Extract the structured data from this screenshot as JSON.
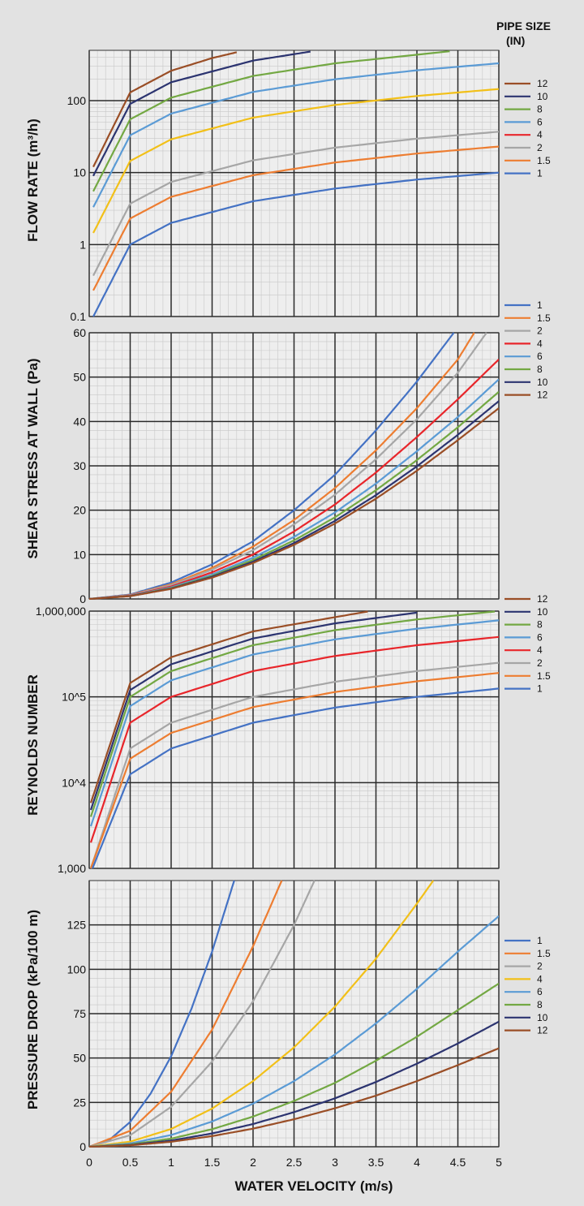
{
  "figure_title": [
    "PIPE SIZE",
    "(IN)"
  ],
  "x_axis": {
    "label": "WATER VELOCITY (m/s)",
    "ticks": [
      "0",
      "0.5",
      "1",
      "1.5",
      "2",
      "2.5",
      "3",
      "3.5",
      "4",
      "4.5",
      "5"
    ],
    "range": [
      0,
      5
    ]
  },
  "colors": {
    "12": "#9a4e26",
    "10": "#2c3470",
    "8": "#73a843",
    "6": "#5b9bd5",
    "4": "#e8262b",
    "2": "#a6a6a6",
    "1.5": "#ed7d31",
    "1": "#4472c4",
    "4y": "#f2c018"
  },
  "chart_data": [
    {
      "type": "line",
      "id": "flow",
      "ylabel": "FLOW RATE (m³/h)",
      "yscale": "log",
      "ylim": [
        0.1,
        500
      ],
      "yticks": [
        {
          "v": 0.1,
          "label": "0.1"
        },
        {
          "v": 1,
          "label": "1"
        },
        {
          "v": 10,
          "label": "10"
        },
        {
          "v": 100,
          "label": "100"
        }
      ],
      "legend_order": [
        "12",
        "10",
        "8",
        "6",
        "4",
        "2",
        "1.5",
        "1"
      ],
      "legend_placement": "top-right",
      "legend_colors": {
        "4": "#e8262b"
      },
      "series": [
        {
          "name": "12",
          "color": "#9a4e26",
          "x": [
            0.05,
            0.5,
            1,
            1.5,
            1.8
          ],
          "y": [
            12,
            130,
            260,
            390,
            470
          ]
        },
        {
          "name": "10",
          "color": "#2c3470",
          "x": [
            0.05,
            0.5,
            1,
            2,
            2.7
          ],
          "y": [
            9,
            90,
            180,
            360,
            480
          ]
        },
        {
          "name": "8",
          "color": "#73a843",
          "x": [
            0.05,
            0.5,
            1,
            2,
            3,
            4.4
          ],
          "y": [
            5.5,
            55,
            110,
            220,
            330,
            485
          ]
        },
        {
          "name": "6",
          "color": "#5b9bd5",
          "x": [
            0.05,
            0.5,
            1,
            2,
            3,
            4,
            5
          ],
          "y": [
            3.3,
            33,
            66,
            132,
            198,
            264,
            330
          ]
        },
        {
          "name": "4",
          "color": "#f2c018",
          "x": [
            0.05,
            0.5,
            1,
            2,
            3,
            4,
            5
          ],
          "y": [
            1.45,
            14.5,
            29,
            58,
            87,
            116,
            145
          ]
        },
        {
          "name": "2",
          "color": "#a6a6a6",
          "x": [
            0.05,
            0.5,
            1,
            2,
            3,
            4,
            5
          ],
          "y": [
            0.37,
            3.7,
            7.4,
            14.8,
            22.2,
            29.6,
            37
          ]
        },
        {
          "name": "1.5",
          "color": "#ed7d31",
          "x": [
            0.05,
            0.5,
            1,
            2,
            3,
            4,
            5
          ],
          "y": [
            0.23,
            2.3,
            4.6,
            9.2,
            13.8,
            18.4,
            23
          ]
        },
        {
          "name": "1",
          "color": "#4472c4",
          "x": [
            0.05,
            0.5,
            1,
            2,
            3,
            4,
            5
          ],
          "y": [
            0.1,
            1.0,
            2.0,
            4.0,
            6.0,
            8.0,
            10
          ]
        }
      ]
    },
    {
      "type": "line",
      "id": "shear",
      "ylabel": "SHEAR STRESS AT WALL (Pa)",
      "yscale": "linear",
      "ylim": [
        0,
        60
      ],
      "yticks": [
        {
          "v": 0,
          "label": "0"
        },
        {
          "v": 10,
          "label": "10"
        },
        {
          "v": 20,
          "label": "20"
        },
        {
          "v": 30,
          "label": "30"
        },
        {
          "v": 40,
          "label": "40"
        },
        {
          "v": 50,
          "label": "50"
        },
        {
          "v": 60,
          "label": "60"
        }
      ],
      "legend_order": [
        "1",
        "1.5",
        "2",
        "4",
        "6",
        "8",
        "10",
        "12"
      ],
      "legend_placement": "right",
      "series": [
        {
          "name": "1",
          "color": "#4472c4",
          "x": [
            0,
            0.5,
            1,
            1.5,
            2,
            2.5,
            3,
            3.5,
            4,
            4.45
          ],
          "y": [
            0,
            1,
            3.7,
            7.8,
            13,
            20,
            28,
            38,
            49,
            60
          ]
        },
        {
          "name": "1.5",
          "color": "#ed7d31",
          "x": [
            0,
            0.5,
            1,
            1.5,
            2,
            2.5,
            3,
            3.5,
            4,
            4.5,
            4.7
          ],
          "y": [
            0,
            0.9,
            3.3,
            7,
            11.8,
            17.8,
            25,
            33.5,
            43,
            54,
            60
          ]
        },
        {
          "name": "2",
          "color": "#a6a6a6",
          "x": [
            0,
            0.5,
            1,
            1.5,
            2,
            2.5,
            3,
            3.5,
            4,
            4.5,
            4.85
          ],
          "y": [
            0,
            0.85,
            3.1,
            6.6,
            11,
            16.8,
            23.5,
            31.5,
            40.5,
            51,
            60
          ]
        },
        {
          "name": "4",
          "color": "#e8262b",
          "x": [
            0,
            0.5,
            1,
            1.5,
            2,
            2.5,
            3,
            3.5,
            4,
            4.5,
            5
          ],
          "y": [
            0,
            0.78,
            2.8,
            6,
            10,
            15.2,
            21.3,
            28.5,
            36.5,
            45,
            54
          ]
        },
        {
          "name": "6",
          "color": "#5b9bd5",
          "x": [
            0,
            0.5,
            1,
            1.5,
            2,
            2.5,
            3,
            3.5,
            4,
            4.5,
            5
          ],
          "y": [
            0,
            0.72,
            2.6,
            5.5,
            9.3,
            14,
            19.5,
            26,
            33.3,
            41,
            49.5
          ]
        },
        {
          "name": "8",
          "color": "#73a843",
          "x": [
            0,
            0.5,
            1,
            1.5,
            2,
            2.5,
            3,
            3.5,
            4,
            4.5,
            5
          ],
          "y": [
            0,
            0.68,
            2.45,
            5.2,
            8.8,
            13.2,
            18.4,
            24.5,
            31.3,
            38.7,
            46.7
          ]
        },
        {
          "name": "10",
          "color": "#2c3470",
          "x": [
            0,
            0.5,
            1,
            1.5,
            2,
            2.5,
            3,
            3.5,
            4,
            4.5,
            5
          ],
          "y": [
            0,
            0.65,
            2.35,
            5,
            8.4,
            12.6,
            17.6,
            23.4,
            29.9,
            37,
            44.6
          ]
        },
        {
          "name": "12",
          "color": "#9a4e26",
          "x": [
            0,
            0.5,
            1,
            1.5,
            2,
            2.5,
            3,
            3.5,
            4,
            4.5,
            5
          ],
          "y": [
            0,
            0.63,
            2.27,
            4.8,
            8.1,
            12.2,
            17,
            22.6,
            28.9,
            35.8,
            43
          ]
        }
      ]
    },
    {
      "type": "line",
      "id": "reynolds",
      "ylabel": "REYNOLDS NUMBER",
      "yscale": "log",
      "ylim": [
        1000,
        1000000
      ],
      "yticks": [
        {
          "v": 1000,
          "label": "1,000"
        },
        {
          "v": 10000,
          "label": "10^4"
        },
        {
          "v": 100000,
          "label": "10^5"
        },
        {
          "v": 1000000,
          "label": "1,000,000"
        }
      ],
      "legend_order": [
        "12",
        "10",
        "8",
        "6",
        "4",
        "2",
        "1.5",
        "1"
      ],
      "legend_placement": "right",
      "series": [
        {
          "name": "12",
          "color": "#9a4e26",
          "x": [
            0.02,
            0.5,
            1,
            2,
            3.4
          ],
          "y": [
            5800,
            145000,
            290000,
            580000,
            990000
          ]
        },
        {
          "name": "10",
          "color": "#2c3470",
          "x": [
            0.02,
            0.5,
            1,
            2,
            3,
            4
          ],
          "y": [
            4800,
            120000,
            240000,
            480000,
            720000,
            960000
          ]
        },
        {
          "name": "8",
          "color": "#73a843",
          "x": [
            0.02,
            0.5,
            1,
            2,
            3,
            4,
            4.95
          ],
          "y": [
            4000,
            100000,
            200000,
            400000,
            600000,
            800000,
            990000
          ]
        },
        {
          "name": "6",
          "color": "#5b9bd5",
          "x": [
            0.02,
            0.5,
            1,
            2,
            3,
            4,
            5
          ],
          "y": [
            3100,
            78000,
            156000,
            312000,
            468000,
            624000,
            780000
          ]
        },
        {
          "name": "4",
          "color": "#e8262b",
          "x": [
            0.02,
            0.5,
            1,
            2,
            3,
            4,
            5
          ],
          "y": [
            2000,
            50000,
            100000,
            200000,
            300000,
            400000,
            500000
          ]
        },
        {
          "name": "2",
          "color": "#a6a6a6",
          "x": [
            0.02,
            0.5,
            1,
            2,
            3,
            4,
            5
          ],
          "y": [
            1000,
            25000,
            50000,
            100000,
            150000,
            200000,
            250000
          ]
        },
        {
          "name": "1.5",
          "color": "#ed7d31",
          "x": [
            0.02,
            0.5,
            1,
            2,
            3,
            4,
            5
          ],
          "y": [
            1000,
            19000,
            38000,
            76000,
            114000,
            152000,
            190000
          ]
        },
        {
          "name": "1",
          "color": "#4472c4",
          "x": [
            0.04,
            0.5,
            1,
            2,
            3,
            4,
            5
          ],
          "y": [
            1000,
            12500,
            25000,
            50000,
            75000,
            100000,
            125000
          ]
        }
      ]
    },
    {
      "type": "line",
      "id": "pressure",
      "ylabel": "PRESSURE DROP (kPa/100 m)",
      "yscale": "linear",
      "ylim": [
        0,
        150
      ],
      "yticks": [
        {
          "v": 0,
          "label": "0"
        },
        {
          "v": 25,
          "label": "25"
        },
        {
          "v": 50,
          "label": "50"
        },
        {
          "v": 75,
          "label": "75"
        },
        {
          "v": 100,
          "label": "100"
        },
        {
          "v": 125,
          "label": "125"
        }
      ],
      "legend_order": [
        "1",
        "1.5",
        "2",
        "4",
        "6",
        "8",
        "10",
        "12"
      ],
      "legend_placement": "right",
      "series": [
        {
          "name": "1",
          "color": "#4472c4",
          "x": [
            0,
            0.25,
            0.5,
            0.75,
            1,
            1.25,
            1.5,
            1.77
          ],
          "y": [
            0,
            4,
            14,
            30,
            51,
            78,
            110,
            150
          ]
        },
        {
          "name": "1.5",
          "color": "#ed7d31",
          "x": [
            0,
            0.5,
            1,
            1.5,
            2,
            2.35
          ],
          "y": [
            0,
            9,
            31,
            66,
            113,
            150
          ]
        },
        {
          "name": "2",
          "color": "#a6a6a6",
          "x": [
            0,
            0.5,
            1,
            1.5,
            2,
            2.5,
            2.75
          ],
          "y": [
            0,
            6.5,
            22.5,
            48,
            82,
            125,
            150
          ]
        },
        {
          "name": "4",
          "color": "#f2c018",
          "x": [
            0,
            0.5,
            1,
            1.5,
            2,
            2.5,
            3,
            3.5,
            4,
            4.2
          ],
          "y": [
            0,
            2.9,
            10,
            21.5,
            37,
            56,
            79,
            106,
            137,
            150
          ]
        },
        {
          "name": "6",
          "color": "#5b9bd5",
          "x": [
            0,
            0.5,
            1,
            1.5,
            2,
            2.5,
            3,
            3.5,
            4,
            4.5,
            5
          ],
          "y": [
            0,
            1.9,
            6.6,
            14.2,
            24.3,
            37,
            52,
            69.5,
            89,
            110,
            130
          ]
        },
        {
          "name": "8",
          "color": "#73a843",
          "x": [
            0,
            0.5,
            1,
            1.5,
            2,
            2.5,
            3,
            3.5,
            4,
            4.5,
            5
          ],
          "y": [
            0,
            1.3,
            4.6,
            9.9,
            17,
            25.8,
            36,
            48.5,
            62,
            77,
            92
          ]
        },
        {
          "name": "10",
          "color": "#2c3470",
          "x": [
            0,
            0.5,
            1,
            1.5,
            2,
            2.5,
            3,
            3.5,
            4,
            4.5,
            5
          ],
          "y": [
            0,
            1,
            3.5,
            7.5,
            12.8,
            19.5,
            27.3,
            36.5,
            46.8,
            58.2,
            70.5
          ]
        },
        {
          "name": "12",
          "color": "#9a4e26",
          "x": [
            0,
            0.5,
            1,
            1.5,
            2,
            2.5,
            3,
            3.5,
            4,
            4.5,
            5
          ],
          "y": [
            0,
            0.8,
            2.8,
            6,
            10.2,
            15.5,
            21.7,
            28.8,
            37,
            46,
            55.5
          ]
        }
      ]
    }
  ]
}
